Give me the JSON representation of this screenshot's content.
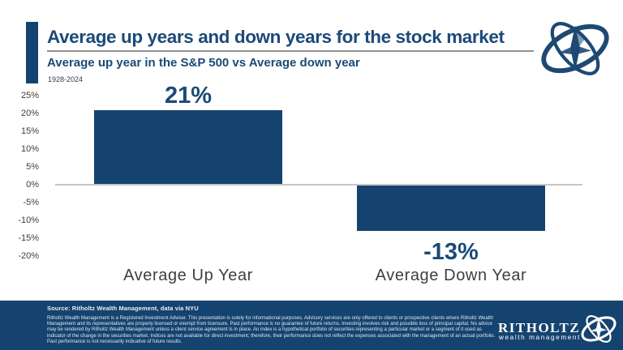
{
  "header": {
    "title": "Average up years and down years for the stock market",
    "subtitle": "Average up year in the S&P 500 vs Average down year",
    "date_range": "1928-2024"
  },
  "chart_data": {
    "type": "bar",
    "title": "Average up years and down years for the stock market",
    "subtitle": "Average up year in the S&P 500 vs Average down year",
    "categories": [
      "Average Up Year",
      "Average Down Year"
    ],
    "values": [
      21,
      -13
    ],
    "value_labels": [
      "21%",
      "-13%"
    ],
    "y_ticks": [
      "25%",
      "20%",
      "15%",
      "10%",
      "5%",
      "0%",
      "-5%",
      "-10%",
      "-15%",
      "-20%"
    ],
    "y_tick_values": [
      25,
      20,
      15,
      10,
      5,
      0,
      -5,
      -10,
      -15,
      -20
    ],
    "ylim": [
      -20,
      25
    ],
    "xlabel": "",
    "ylabel": "",
    "grid": false,
    "legend": false,
    "bar_color": "#15436f"
  },
  "footer": {
    "source": "Source: Ritholtz Wealth Management, data via NYU",
    "disclaimer": "Ritholtz Wealth Management is a Registered Investment Adviser. This presentation is solely for informational purposes. Advisory services are only offered to clients or prospective clients where Ritholtz Wealth Management and its representatives are properly licensed or exempt from licensure. Past performance is no guarantee of future returns. Investing involves risk and possible loss of principal capital. No advice may be rendered by Ritholtz Wealth Management unless a client service agreement is in place. An index is a hypothetical portfolio of securities representing a particular market or a segment of it used as indicator of the change in the securities market. Indices are not available for direct investment; therefore, their performance does not reflect the expenses associated with the management of an actual portfolio. Past performance is not necessarily indicative of future results.",
    "brand_name": "RITHOLTZ",
    "brand_tagline": "wealth management"
  },
  "colors": {
    "navy": "#15436f",
    "title_navy": "#1b4a78",
    "axis_line": "#c7c7c7",
    "label_grey": "#3f3f3f",
    "footer_bg": "#15436f"
  }
}
